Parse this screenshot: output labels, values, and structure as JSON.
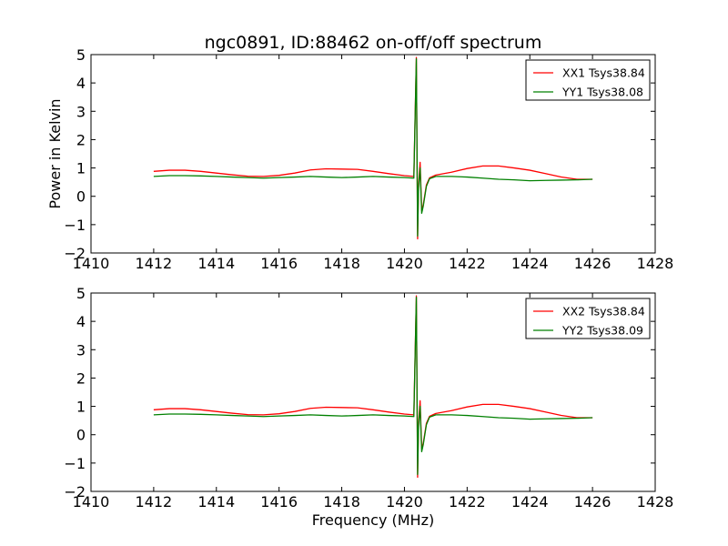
{
  "chart_data": [
    {
      "type": "line",
      "title": "ngc0891, ID:88462 on-off/off spectrum",
      "xlabel": "",
      "ylabel": "Power in Kelvin",
      "xlim": [
        1410,
        1428
      ],
      "ylim": [
        -2,
        5
      ],
      "xticks": [
        "1410",
        "1412",
        "1414",
        "1416",
        "1418",
        "1420",
        "1422",
        "1424",
        "1426",
        "1428"
      ],
      "yticks": [
        "−2",
        "−1",
        "0",
        "1",
        "2",
        "3",
        "4",
        "5"
      ],
      "grid": false,
      "legend_position": "top-right",
      "series": [
        {
          "name": "XX1 Tsys38.84",
          "color": "#ff0000",
          "x": [
            1412.0,
            1412.5,
            1413.0,
            1413.5,
            1414.0,
            1414.5,
            1415.0,
            1415.5,
            1416.0,
            1416.5,
            1417.0,
            1417.5,
            1418.0,
            1418.5,
            1419.0,
            1419.5,
            1420.0,
            1420.3,
            1420.38,
            1420.42,
            1420.45,
            1420.5,
            1420.55,
            1420.6,
            1420.7,
            1420.8,
            1421.0,
            1421.5,
            1422.0,
            1422.5,
            1423.0,
            1423.5,
            1424.0,
            1424.5,
            1425.0,
            1425.5,
            1426.0
          ],
          "y": [
            0.88,
            0.92,
            0.92,
            0.88,
            0.82,
            0.76,
            0.71,
            0.7,
            0.74,
            0.82,
            0.93,
            0.97,
            0.96,
            0.95,
            0.88,
            0.8,
            0.73,
            0.7,
            4.9,
            -1.5,
            0.4,
            1.2,
            -0.5,
            -0.3,
            0.4,
            0.65,
            0.75,
            0.85,
            0.98,
            1.07,
            1.07,
            1.0,
            0.92,
            0.8,
            0.68,
            0.6,
            0.6
          ]
        },
        {
          "name": "YY1 Tsys38.08",
          "color": "#008000",
          "x": [
            1412.0,
            1412.5,
            1413.0,
            1413.5,
            1414.0,
            1414.5,
            1415.0,
            1415.5,
            1416.0,
            1416.5,
            1417.0,
            1417.5,
            1418.0,
            1418.5,
            1419.0,
            1419.5,
            1420.0,
            1420.3,
            1420.38,
            1420.42,
            1420.45,
            1420.5,
            1420.55,
            1420.6,
            1420.7,
            1420.8,
            1421.0,
            1421.5,
            1422.0,
            1422.5,
            1423.0,
            1423.5,
            1424.0,
            1424.5,
            1425.0,
            1425.5,
            1426.0
          ],
          "y": [
            0.7,
            0.73,
            0.73,
            0.72,
            0.7,
            0.68,
            0.66,
            0.64,
            0.66,
            0.68,
            0.7,
            0.68,
            0.66,
            0.68,
            0.7,
            0.68,
            0.66,
            0.64,
            4.85,
            -1.4,
            0.3,
            1.0,
            -0.6,
            -0.35,
            0.35,
            0.62,
            0.7,
            0.7,
            0.68,
            0.64,
            0.6,
            0.58,
            0.55,
            0.56,
            0.57,
            0.58,
            0.6
          ]
        }
      ]
    },
    {
      "type": "line",
      "title": "",
      "xlabel": "Frequency (MHz)",
      "ylabel": "",
      "xlim": [
        1410,
        1428
      ],
      "ylim": [
        -2,
        5
      ],
      "xticks": [
        "1410",
        "1412",
        "1414",
        "1416",
        "1418",
        "1420",
        "1422",
        "1424",
        "1426",
        "1428"
      ],
      "yticks": [
        "−2",
        "−1",
        "0",
        "1",
        "2",
        "3",
        "4",
        "5"
      ],
      "grid": false,
      "legend_position": "top-right",
      "series": [
        {
          "name": "XX2 Tsys38.84",
          "color": "#ff0000",
          "x": [
            1412.0,
            1412.5,
            1413.0,
            1413.5,
            1414.0,
            1414.5,
            1415.0,
            1415.5,
            1416.0,
            1416.5,
            1417.0,
            1417.5,
            1418.0,
            1418.5,
            1419.0,
            1419.5,
            1420.0,
            1420.3,
            1420.38,
            1420.42,
            1420.45,
            1420.5,
            1420.55,
            1420.6,
            1420.7,
            1420.8,
            1421.0,
            1421.5,
            1422.0,
            1422.5,
            1423.0,
            1423.5,
            1424.0,
            1424.5,
            1425.0,
            1425.5,
            1426.0
          ],
          "y": [
            0.88,
            0.92,
            0.92,
            0.88,
            0.82,
            0.76,
            0.71,
            0.7,
            0.74,
            0.82,
            0.93,
            0.97,
            0.96,
            0.95,
            0.88,
            0.8,
            0.73,
            0.7,
            4.9,
            -1.5,
            0.4,
            1.2,
            -0.5,
            -0.3,
            0.4,
            0.65,
            0.75,
            0.85,
            0.98,
            1.07,
            1.07,
            1.0,
            0.92,
            0.8,
            0.68,
            0.6,
            0.6
          ]
        },
        {
          "name": "YY2 Tsys38.09",
          "color": "#008000",
          "x": [
            1412.0,
            1412.5,
            1413.0,
            1413.5,
            1414.0,
            1414.5,
            1415.0,
            1415.5,
            1416.0,
            1416.5,
            1417.0,
            1417.5,
            1418.0,
            1418.5,
            1419.0,
            1419.5,
            1420.0,
            1420.3,
            1420.38,
            1420.42,
            1420.45,
            1420.5,
            1420.55,
            1420.6,
            1420.7,
            1420.8,
            1421.0,
            1421.5,
            1422.0,
            1422.5,
            1423.0,
            1423.5,
            1424.0,
            1424.5,
            1425.0,
            1425.5,
            1426.0
          ],
          "y": [
            0.7,
            0.73,
            0.73,
            0.72,
            0.7,
            0.68,
            0.66,
            0.64,
            0.66,
            0.68,
            0.7,
            0.68,
            0.66,
            0.68,
            0.7,
            0.68,
            0.66,
            0.64,
            4.85,
            -1.4,
            0.3,
            1.0,
            -0.6,
            -0.35,
            0.35,
            0.62,
            0.7,
            0.7,
            0.68,
            0.64,
            0.6,
            0.58,
            0.55,
            0.56,
            0.57,
            0.58,
            0.6
          ]
        }
      ]
    }
  ]
}
